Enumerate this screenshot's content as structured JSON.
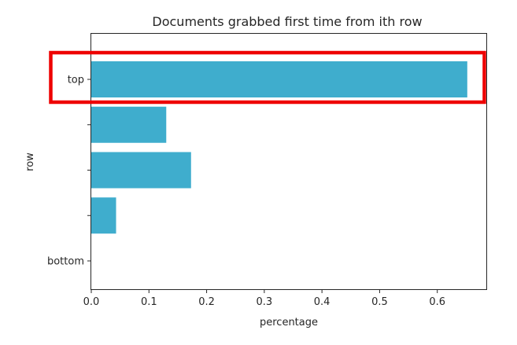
{
  "chart_data": {
    "type": "bar",
    "orientation": "horizontal",
    "title": "Documents grabbed first time from ith row",
    "xlabel": "percentage",
    "ylabel": "row",
    "categories": [
      "top",
      "",
      "",
      "",
      "bottom"
    ],
    "values": [
      0.652,
      0.13,
      0.173,
      0.043,
      0
    ],
    "xlim": [
      0,
      0.685
    ],
    "xticks": [
      0.0,
      0.1,
      0.2,
      0.3,
      0.4,
      0.5,
      0.6
    ],
    "xtick_labels": [
      "0.0",
      "0.1",
      "0.2",
      "0.3",
      "0.4",
      "0.5",
      "0.6"
    ],
    "bar_color": "#3fadcd",
    "grid": false,
    "legend": "none",
    "highlight": {
      "category": "top",
      "color": "#ee0000"
    }
  }
}
